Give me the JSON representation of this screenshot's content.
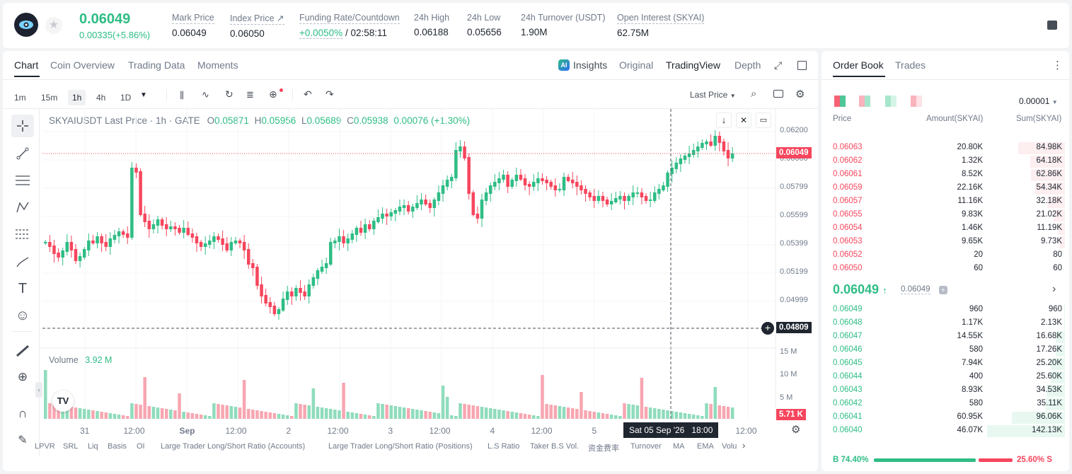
{
  "header": {
    "price": "0.06049",
    "change": "0.00335(+5.86%)",
    "stats": [
      {
        "label": "Mark Price",
        "value": "0.06049"
      },
      {
        "label": "Index Price",
        "value": "0.06050"
      },
      {
        "label": "Funding Rate/Countdown",
        "value_a": "+0.0050%",
        "value_b": "/ 02:58:11"
      },
      {
        "label": "24h High",
        "value": "0.06188"
      },
      {
        "label": "24h Low",
        "value": "0.05656"
      },
      {
        "label": "24h Turnover (USDT)",
        "value": "1.90M"
      },
      {
        "label": "Open Interest (SKYAI)",
        "value": "62.75M"
      }
    ]
  },
  "chart_tabs": [
    "Chart",
    "Coin Overview",
    "Trading Data",
    "Moments"
  ],
  "view_tabs": {
    "insights": "Insights",
    "original": "Original",
    "tradingview": "TradingView",
    "depth": "Depth"
  },
  "timeframes": [
    "1m",
    "15m",
    "1h",
    "4h",
    "1D"
  ],
  "last_price_select": "Last Price",
  "legend": {
    "symbol": "SKYAIUSDT Last Price · 1h · GATE",
    "o_lab": "O",
    "o": "0.05871",
    "h_lab": "H",
    "h": "0.05956",
    "l_lab": "L",
    "l": "0.05689",
    "c_lab": "C",
    "c": "0.05938",
    "chg": "0.00076 (+1.30%)"
  },
  "y_axis": [
    "0.06200",
    "0.06000",
    "0.05799",
    "0.05599",
    "0.05399",
    "0.05199",
    "0.04999"
  ],
  "price_tag": "0.06049",
  "cross_tag": "0.04809",
  "volume": {
    "label": "Volume",
    "value": "3.92 M",
    "axis": [
      "15 M",
      "10 M",
      "5 M"
    ],
    "tag": "5.71 K"
  },
  "x_axis": [
    "31",
    "12:00",
    "Sep",
    "12:00",
    "2",
    "12:00",
    "3",
    "12:00",
    "4",
    "12:00",
    "5",
    "12:00"
  ],
  "crosshair_time": "Sat 05 Sep '26   18:00",
  "indicators": [
    "LPVR",
    "SRL",
    "Liq",
    "Basis",
    "OI",
    "Large Trader Long/Short Ratio (Accounts)",
    "Large Trader Long/Short Ratio (Positions)",
    "L.S Ratio",
    "Taker B.S Vol.",
    "资金费率",
    "Turnover",
    "MA",
    "EMA",
    "Volu"
  ],
  "orderbook": {
    "tabs": [
      "Order Book",
      "Trades"
    ],
    "precision": "0.00001",
    "cols": [
      "Price",
      "Amount(SKYAI)",
      "Sum(SKYAI)"
    ],
    "asks": [
      {
        "p": "0.06063",
        "a": "20.80K",
        "s": "84.98K",
        "d": 0.6
      },
      {
        "p": "0.06062",
        "a": "1.32K",
        "s": "64.18K",
        "d": 0.45
      },
      {
        "p": "0.06061",
        "a": "8.52K",
        "s": "62.86K",
        "d": 0.44
      },
      {
        "p": "0.06059",
        "a": "22.16K",
        "s": "54.34K",
        "d": 0.38
      },
      {
        "p": "0.06057",
        "a": "11.16K",
        "s": "32.18K",
        "d": 0.23
      },
      {
        "p": "0.06055",
        "a": "9.83K",
        "s": "21.02K",
        "d": 0.15
      },
      {
        "p": "0.06054",
        "a": "1.46K",
        "s": "11.19K",
        "d": 0.08
      },
      {
        "p": "0.06053",
        "a": "9.65K",
        "s": "9.73K",
        "d": 0.07
      },
      {
        "p": "0.06052",
        "a": "20",
        "s": "80",
        "d": 0
      },
      {
        "p": "0.06050",
        "a": "60",
        "s": "60",
        "d": 0
      }
    ],
    "mid": {
      "price": "0.06049",
      "mark": "0.06049"
    },
    "bids": [
      {
        "p": "0.06049",
        "a": "960",
        "s": "960",
        "d": 0.01
      },
      {
        "p": "0.06048",
        "a": "1.17K",
        "s": "2.13K",
        "d": 0.01
      },
      {
        "p": "0.06047",
        "a": "14.55K",
        "s": "16.68K",
        "d": 0.12
      },
      {
        "p": "0.06046",
        "a": "580",
        "s": "17.26K",
        "d": 0.12
      },
      {
        "p": "0.06045",
        "a": "7.94K",
        "s": "25.20K",
        "d": 0.18
      },
      {
        "p": "0.06044",
        "a": "400",
        "s": "25.60K",
        "d": 0.18
      },
      {
        "p": "0.06043",
        "a": "8.93K",
        "s": "34.53K",
        "d": 0.24
      },
      {
        "p": "0.06042",
        "a": "580",
        "s": "35.11K",
        "d": 0.25
      },
      {
        "p": "0.06041",
        "a": "60.95K",
        "s": "96.06K",
        "d": 0.68
      },
      {
        "p": "0.06040",
        "a": "46.07K",
        "s": "142.13K",
        "d": 1.0
      }
    ],
    "buy_ratio": "B 74.40%",
    "sell_ratio": "25.60% S",
    "buy_frac": 0.744
  }
}
